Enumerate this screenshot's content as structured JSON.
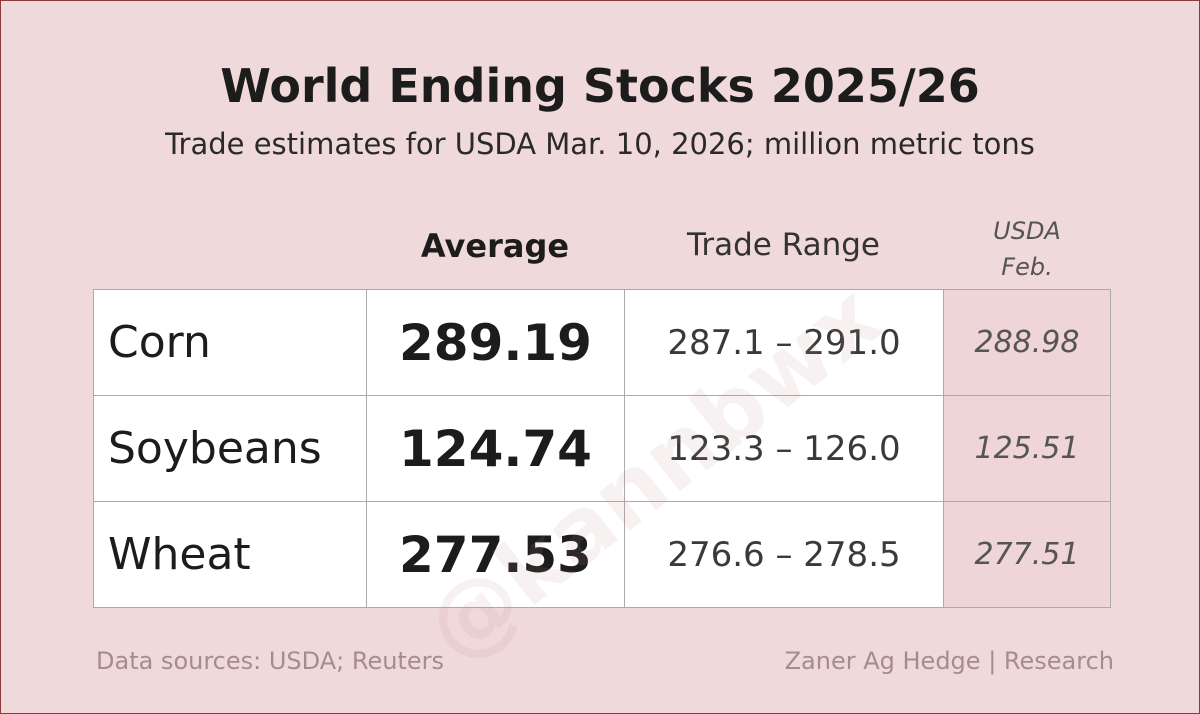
{
  "header": {
    "title": "World Ending Stocks 2025/26",
    "subtitle": "Trade estimates for USDA Mar. 10, 2026; million metric tons"
  },
  "table": {
    "columns": [
      "Average",
      "Trade Range",
      "USDA Feb."
    ],
    "rows": [
      [
        "Corn",
        "289.19",
        "287.1 – 291.0",
        "288.98"
      ],
      [
        "Soybeans",
        "124.74",
        "123.3 – 126.0",
        "125.51"
      ],
      [
        "Wheat",
        "277.53",
        "276.6 – 278.5",
        "277.51"
      ]
    ]
  },
  "footer": {
    "source": "Data sources: USDA; Reuters",
    "credit": "Zaner Ag Hedge | Research"
  },
  "watermark": "@kannbwx"
}
